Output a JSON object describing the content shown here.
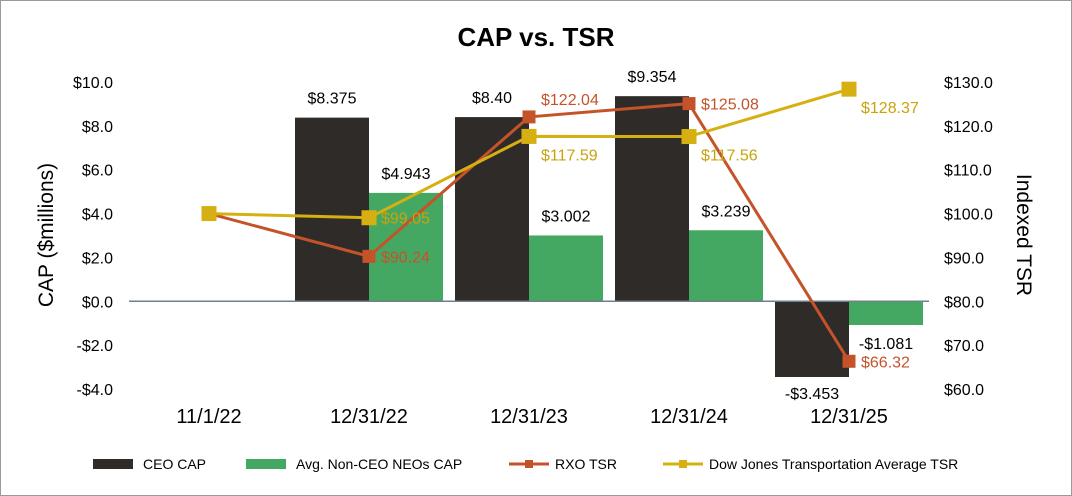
{
  "chart_data": {
    "type": "bar-line-combo",
    "title": "CAP vs. TSR",
    "categories": [
      "11/1/22",
      "12/31/22",
      "12/31/23",
      "12/31/24",
      "12/31/25"
    ],
    "y_left": {
      "label": "CAP ($millions)",
      "range": [
        -4,
        10
      ],
      "ticks": [
        -4,
        -2,
        0,
        2,
        4,
        6,
        8,
        10
      ],
      "tick_labels": [
        "-$4.0",
        "-$2.0",
        "$0.0",
        "$2.0",
        "$4.0",
        "$6.0",
        "$8.0",
        "$10.0"
      ]
    },
    "y_right": {
      "label": "Indexed TSR",
      "range": [
        60,
        130
      ],
      "ticks": [
        60,
        70,
        80,
        90,
        100,
        110,
        120,
        130
      ],
      "tick_labels": [
        "$60.0",
        "$70.0",
        "$80.0",
        "$90.0",
        "$100.0",
        "$110.0",
        "$120.0",
        "$130.0"
      ]
    },
    "bar_series": [
      {
        "name": "CEO CAP",
        "color": "#2e2b29",
        "values": [
          null,
          8.375,
          8.4,
          9.354,
          -3.453
        ],
        "labels": [
          "",
          "$8.375",
          "$8.40",
          "$9.354",
          "-$3.453"
        ]
      },
      {
        "name": "Avg. Non-CEO NEOs CAP",
        "color": "#45a862",
        "values": [
          null,
          4.943,
          3.002,
          3.239,
          -1.081
        ],
        "labels": [
          "",
          "$4.943",
          "$3.002",
          "$3.239",
          "-$1.081"
        ]
      }
    ],
    "line_series": [
      {
        "name": "RXO TSR",
        "color": "#c5532a",
        "label_color": "#c5532a",
        "values": [
          100,
          90.24,
          122.04,
          125.08,
          66.32
        ],
        "labels": [
          "",
          "$90.24",
          "$122.04",
          "$125.08",
          "$66.32"
        ]
      },
      {
        "name": "Dow Jones Transportation Average TSR",
        "color": "#d6b012",
        "label_color": "#c9a20c",
        "values": [
          100,
          99.05,
          117.59,
          117.56,
          128.37
        ],
        "labels": [
          "",
          "$99.05",
          "$117.59",
          "$117.56",
          "$128.37"
        ]
      }
    ],
    "legend": [
      "CEO CAP",
      "Avg. Non-CEO NEOs CAP",
      "RXO TSR",
      "Dow Jones Transportation Average TSR"
    ],
    "legend_position": "bottom"
  }
}
